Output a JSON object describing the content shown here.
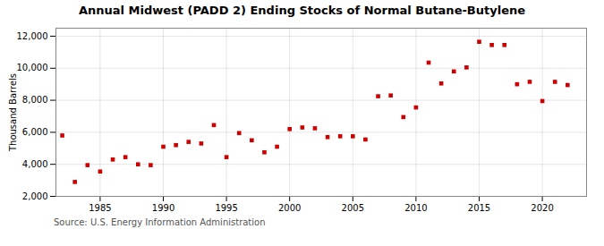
{
  "chart_data": {
    "type": "scatter",
    "title": "Annual Midwest (PADD 2) Ending Stocks of Normal Butane-Butylene",
    "ylabel": "Thousand Barrels",
    "source": "Source: U.S. Energy Information Administration",
    "x": [
      1982,
      1983,
      1984,
      1985,
      1986,
      1987,
      1988,
      1989,
      1990,
      1991,
      1992,
      1993,
      1994,
      1995,
      1996,
      1997,
      1998,
      1999,
      2000,
      2001,
      2002,
      2003,
      2004,
      2005,
      2006,
      2007,
      2008,
      2009,
      2010,
      2011,
      2012,
      2013,
      2014,
      2015,
      2016,
      2017,
      2018,
      2019,
      2020,
      2021,
      2022
    ],
    "values": [
      5800,
      2900,
      3950,
      3550,
      4300,
      4450,
      4000,
      3950,
      5100,
      5200,
      5400,
      5300,
      6450,
      4450,
      5950,
      5500,
      4750,
      5100,
      6200,
      6300,
      6250,
      5700,
      5750,
      5750,
      5550,
      8250,
      8300,
      6950,
      7550,
      10350,
      9050,
      9800,
      10050,
      11650,
      11450,
      11450,
      9000,
      9150,
      7950,
      9150,
      8950
    ],
    "color": "#cc0000",
    "marker": "square",
    "xlim": [
      1981.5,
      2023.5
    ],
    "xticks": [
      1985,
      1990,
      1995,
      2000,
      2005,
      2010,
      2015,
      2020
    ],
    "ylim": [
      2000,
      12500
    ],
    "yticks": [
      {
        "value": 2000,
        "label": "2,000"
      },
      {
        "value": 4000,
        "label": "4,000"
      },
      {
        "value": 6000,
        "label": "6,000"
      },
      {
        "value": 8000,
        "label": "8,000"
      },
      {
        "value": 10000,
        "label": "10,000"
      },
      {
        "value": 12000,
        "label": "12,000"
      }
    ],
    "grid": true
  }
}
